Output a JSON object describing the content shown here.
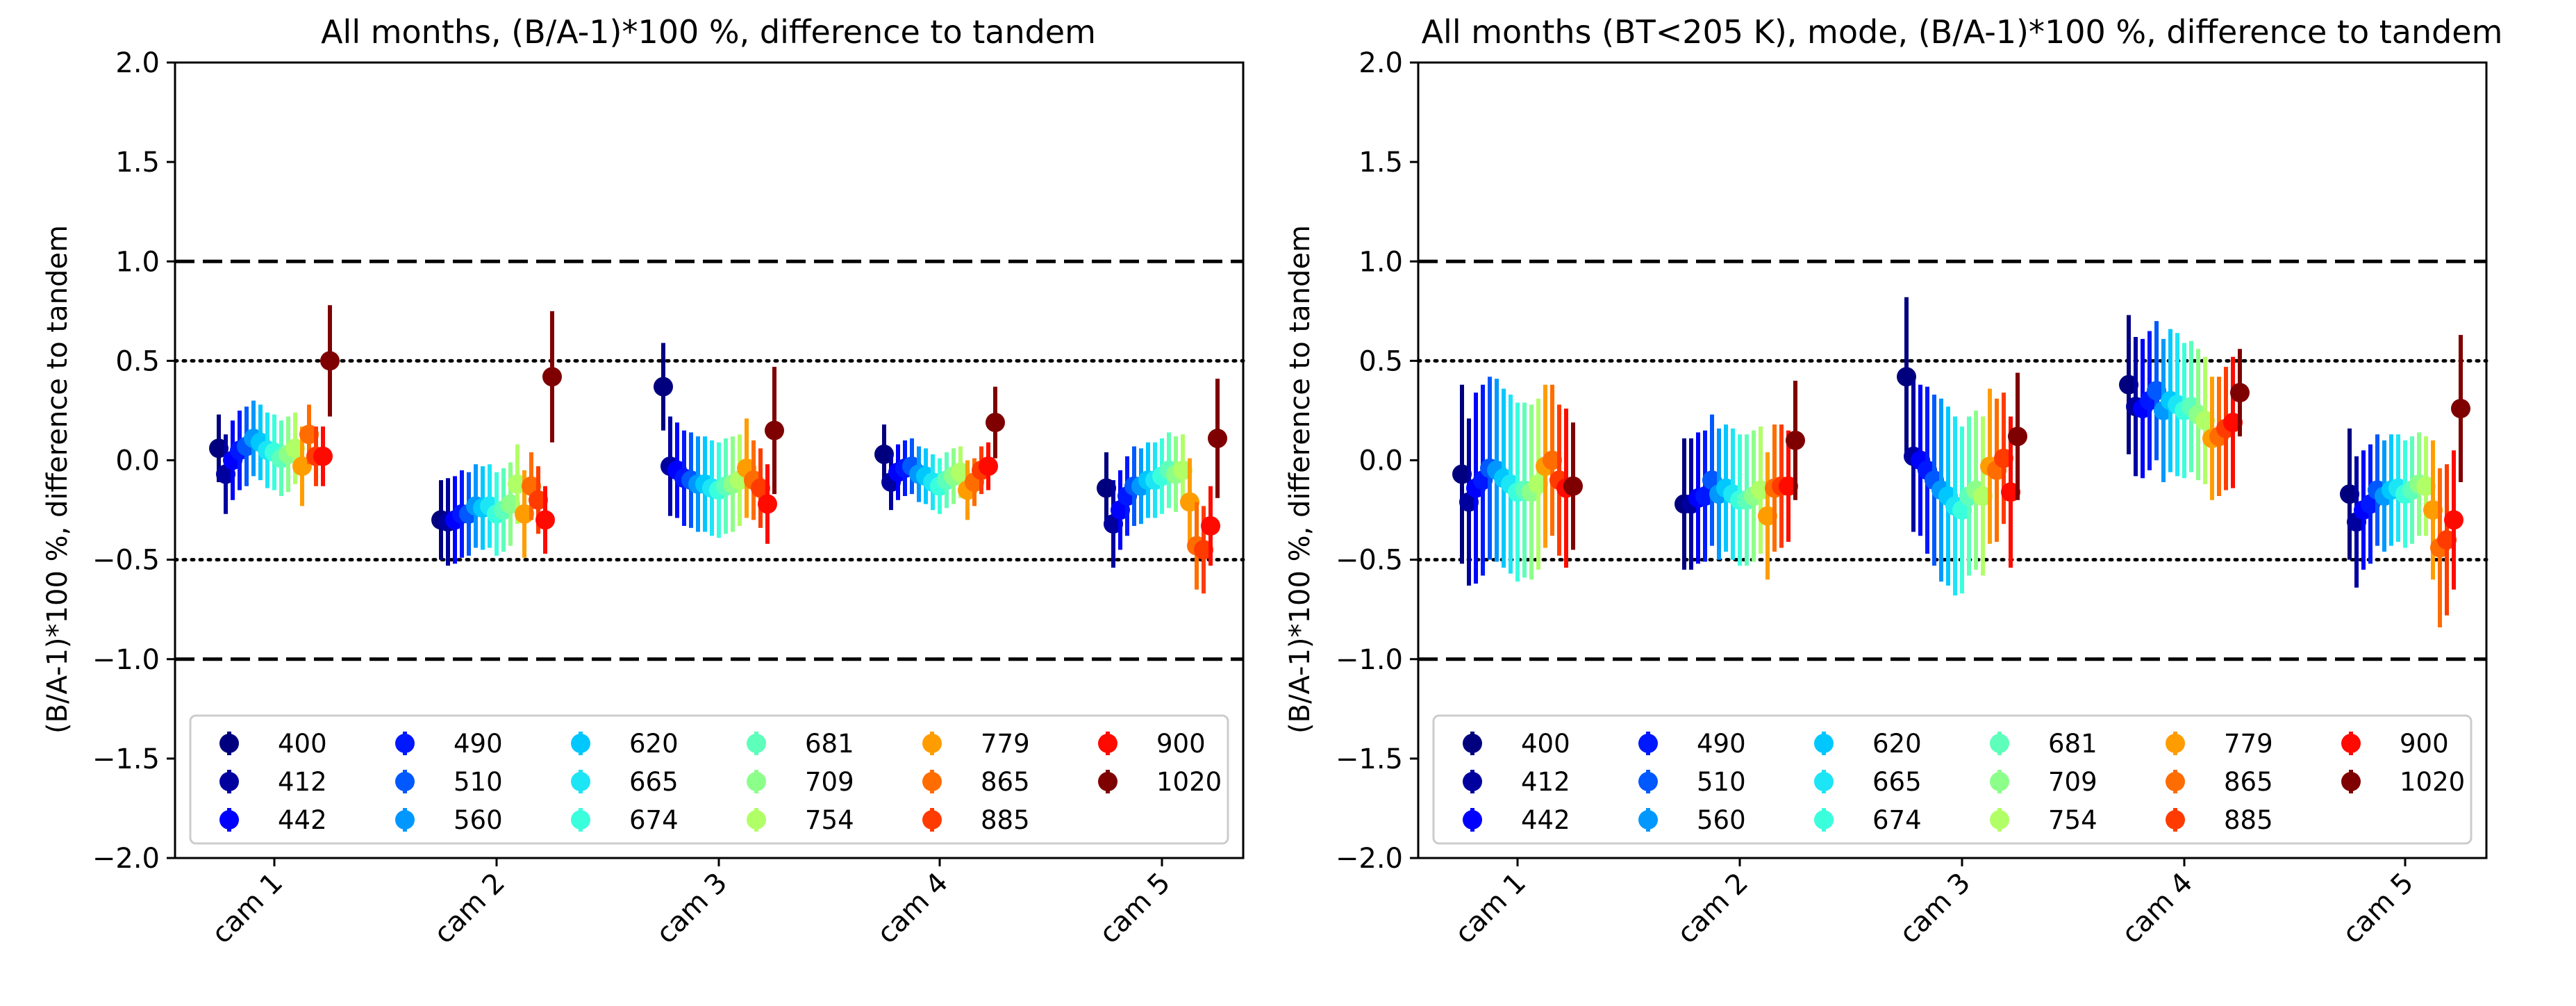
{
  "figure": {
    "colors": {
      "400": "#00007f",
      "412": "#00009f",
      "442": "#0000ff",
      "490": "#0018ff",
      "510": "#0058ff",
      "560": "#0098ff",
      "620": "#00c8ff",
      "665": "#1ce5f6",
      "674": "#3affdd",
      "681": "#5dffba",
      "709": "#8cff8a",
      "754": "#b1ff66",
      "779": "#ff9d00",
      "865": "#ff6c00",
      "885": "#ff3b00",
      "900": "#ff0a00",
      "1020": "#7f0000"
    },
    "reference_lines": [
      {
        "y": 1.0,
        "style": "dashed"
      },
      {
        "y": -1.0,
        "style": "dashed"
      },
      {
        "y": 0.5,
        "style": "dotted"
      },
      {
        "y": -0.5,
        "style": "dotted"
      }
    ]
  },
  "chart_data": [
    {
      "type": "scatter",
      "title": "All months, (B/A-1)*100 %, difference to tandem",
      "xlabel": "",
      "ylabel": "(B/A-1)*100 %, difference to tandem",
      "ylim": [
        -2.0,
        2.0
      ],
      "yticks": [
        2.0,
        1.5,
        1.0,
        0.5,
        0.0,
        -0.5,
        -1.0,
        -1.5,
        -2.0
      ],
      "ytick_labels": [
        "2.0",
        "1.5",
        "1.0",
        "0.5",
        "0.0",
        "−0.5",
        "−1.0",
        "−1.5",
        "−2.0"
      ],
      "categories": [
        "cam 1",
        "cam 2",
        "cam 3",
        "cam 4",
        "cam 5"
      ],
      "legend": [
        "400",
        "412",
        "442",
        "490",
        "510",
        "560",
        "620",
        "665",
        "674",
        "681",
        "709",
        "754",
        "779",
        "865",
        "885",
        "900",
        "1020"
      ],
      "legend_position": "lower center",
      "series": [
        {
          "name": "400",
          "values": [
            0.06,
            -0.3,
            0.37,
            0.03,
            -0.14
          ],
          "errors": [
            0.17,
            0.2,
            0.22,
            0.15,
            0.18
          ]
        },
        {
          "name": "412",
          "values": [
            -0.07,
            -0.31,
            -0.03,
            -0.11,
            -0.32
          ],
          "errors": [
            0.2,
            0.22,
            0.25,
            0.14,
            0.22
          ]
        },
        {
          "name": "442",
          "values": [
            0.0,
            -0.3,
            -0.05,
            -0.06,
            -0.25
          ],
          "errors": [
            0.2,
            0.22,
            0.24,
            0.14,
            0.2
          ]
        },
        {
          "name": "490",
          "values": [
            0.05,
            -0.27,
            -0.09,
            -0.04,
            -0.18
          ],
          "errors": [
            0.2,
            0.22,
            0.24,
            0.14,
            0.2
          ]
        },
        {
          "name": "510",
          "values": [
            0.07,
            -0.27,
            -0.1,
            -0.03,
            -0.13
          ],
          "errors": [
            0.2,
            0.21,
            0.24,
            0.14,
            0.2
          ]
        },
        {
          "name": "560",
          "values": [
            0.11,
            -0.23,
            -0.12,
            -0.07,
            -0.13
          ],
          "errors": [
            0.19,
            0.21,
            0.24,
            0.14,
            0.19
          ]
        },
        {
          "name": "620",
          "values": [
            0.09,
            -0.24,
            -0.12,
            -0.08,
            -0.1
          ],
          "errors": [
            0.19,
            0.21,
            0.24,
            0.14,
            0.19
          ]
        },
        {
          "name": "665",
          "values": [
            0.05,
            -0.23,
            -0.14,
            -0.11,
            -0.1
          ],
          "errors": [
            0.19,
            0.21,
            0.24,
            0.14,
            0.19
          ]
        },
        {
          "name": "674",
          "values": [
            0.04,
            -0.27,
            -0.15,
            -0.13,
            -0.08
          ],
          "errors": [
            0.19,
            0.21,
            0.24,
            0.14,
            0.19
          ]
        },
        {
          "name": "681",
          "values": [
            0.01,
            -0.25,
            -0.13,
            -0.1,
            -0.05
          ],
          "errors": [
            0.19,
            0.21,
            0.24,
            0.14,
            0.19
          ]
        },
        {
          "name": "709",
          "values": [
            0.03,
            -0.22,
            -0.12,
            -0.08,
            -0.07
          ],
          "errors": [
            0.19,
            0.21,
            0.24,
            0.14,
            0.19
          ]
        },
        {
          "name": "754",
          "values": [
            0.06,
            -0.12,
            -0.1,
            -0.06,
            -0.05
          ],
          "errors": [
            0.18,
            0.2,
            0.23,
            0.13,
            0.18
          ]
        },
        {
          "name": "779",
          "values": [
            -0.03,
            -0.27,
            -0.04,
            -0.15,
            -0.21
          ],
          "errors": [
            0.2,
            0.22,
            0.25,
            0.15,
            0.22
          ]
        },
        {
          "name": "865",
          "values": [
            0.13,
            -0.13,
            -0.1,
            -0.11,
            -0.43
          ],
          "errors": [
            0.15,
            0.17,
            0.2,
            0.12,
            0.22
          ]
        },
        {
          "name": "885",
          "values": [
            0.02,
            -0.2,
            -0.14,
            -0.05,
            -0.45
          ],
          "errors": [
            0.15,
            0.17,
            0.2,
            0.12,
            0.22
          ]
        },
        {
          "name": "900",
          "values": [
            0.02,
            -0.3,
            -0.22,
            -0.03,
            -0.33
          ],
          "errors": [
            0.15,
            0.17,
            0.2,
            0.12,
            0.2
          ]
        },
        {
          "name": "1020",
          "values": [
            0.5,
            0.42,
            0.15,
            0.19,
            0.11
          ],
          "errors": [
            0.28,
            0.33,
            0.32,
            0.18,
            0.3
          ]
        }
      ]
    },
    {
      "type": "scatter",
      "title": "All months (BT<205 K), mode, (B/A-1)*100 %, difference to tandem",
      "xlabel": "",
      "ylabel": "(B/A-1)*100 %, difference to tandem",
      "ylim": [
        -2.0,
        2.0
      ],
      "yticks": [
        2.0,
        1.5,
        1.0,
        0.5,
        0.0,
        -0.5,
        -1.0,
        -1.5,
        -2.0
      ],
      "ytick_labels": [
        "2.0",
        "1.5",
        "1.0",
        "0.5",
        "0.0",
        "−0.5",
        "−1.0",
        "−1.5",
        "−2.0"
      ],
      "categories": [
        "cam 1",
        "cam 2",
        "cam 3",
        "cam 4",
        "cam 5"
      ],
      "legend": [
        "400",
        "412",
        "442",
        "490",
        "510",
        "560",
        "620",
        "665",
        "674",
        "681",
        "709",
        "754",
        "779",
        "865",
        "885",
        "900",
        "1020"
      ],
      "legend_position": "lower center",
      "series": [
        {
          "name": "400",
          "values": [
            -0.07,
            -0.22,
            0.42,
            0.38,
            -0.17
          ],
          "errors": [
            0.45,
            0.33,
            0.4,
            0.35,
            0.33
          ]
        },
        {
          "name": "412",
          "values": [
            -0.21,
            -0.22,
            0.02,
            0.27,
            -0.31
          ],
          "errors": [
            0.42,
            0.33,
            0.38,
            0.35,
            0.33
          ]
        },
        {
          "name": "442",
          "values": [
            -0.14,
            -0.19,
            0.0,
            0.26,
            -0.25
          ],
          "errors": [
            0.48,
            0.33,
            0.38,
            0.35,
            0.3
          ]
        },
        {
          "name": "490",
          "values": [
            -0.1,
            -0.18,
            -0.05,
            0.3,
            -0.22
          ],
          "errors": [
            0.48,
            0.33,
            0.42,
            0.35,
            0.3
          ]
        },
        {
          "name": "510",
          "values": [
            -0.04,
            -0.1,
            -0.1,
            0.35,
            -0.15
          ],
          "errors": [
            0.46,
            0.33,
            0.43,
            0.35,
            0.28
          ]
        },
        {
          "name": "560",
          "values": [
            -0.05,
            -0.17,
            -0.15,
            0.25,
            -0.18
          ],
          "errors": [
            0.46,
            0.33,
            0.46,
            0.36,
            0.28
          ]
        },
        {
          "name": "620",
          "values": [
            -0.09,
            -0.14,
            -0.18,
            0.3,
            -0.15
          ],
          "errors": [
            0.45,
            0.32,
            0.45,
            0.36,
            0.28
          ]
        },
        {
          "name": "665",
          "values": [
            -0.12,
            -0.17,
            -0.23,
            0.28,
            -0.14
          ],
          "errors": [
            0.45,
            0.33,
            0.45,
            0.36,
            0.27
          ]
        },
        {
          "name": "674",
          "values": [
            -0.16,
            -0.2,
            -0.25,
            0.25,
            -0.17
          ],
          "errors": [
            0.45,
            0.33,
            0.42,
            0.34,
            0.27
          ]
        },
        {
          "name": "681",
          "values": [
            -0.15,
            -0.2,
            -0.18,
            0.27,
            -0.15
          ],
          "errors": [
            0.44,
            0.33,
            0.4,
            0.33,
            0.27
          ]
        },
        {
          "name": "709",
          "values": [
            -0.16,
            -0.18,
            -0.15,
            0.23,
            -0.12
          ],
          "errors": [
            0.44,
            0.33,
            0.4,
            0.33,
            0.26
          ]
        },
        {
          "name": "754",
          "values": [
            -0.12,
            -0.15,
            -0.18,
            0.2,
            -0.13
          ],
          "errors": [
            0.43,
            0.32,
            0.4,
            0.32,
            0.25
          ]
        },
        {
          "name": "779",
          "values": [
            -0.03,
            -0.28,
            -0.03,
            0.11,
            -0.25
          ],
          "errors": [
            0.41,
            0.32,
            0.39,
            0.31,
            0.35
          ]
        },
        {
          "name": "865",
          "values": [
            0.0,
            -0.14,
            -0.05,
            0.12,
            -0.44
          ],
          "errors": [
            0.38,
            0.32,
            0.36,
            0.3,
            0.4
          ]
        },
        {
          "name": "885",
          "values": [
            -0.1,
            -0.13,
            0.01,
            0.16,
            -0.4
          ],
          "errors": [
            0.38,
            0.31,
            0.33,
            0.31,
            0.38
          ]
        },
        {
          "name": "900",
          "values": [
            -0.14,
            -0.13,
            -0.16,
            0.19,
            -0.3
          ],
          "errors": [
            0.4,
            0.28,
            0.38,
            0.33,
            0.35
          ]
        },
        {
          "name": "1020",
          "values": [
            -0.13,
            0.1,
            0.12,
            0.34,
            0.26
          ],
          "errors": [
            0.32,
            0.3,
            0.32,
            0.22,
            0.37
          ]
        }
      ]
    }
  ]
}
